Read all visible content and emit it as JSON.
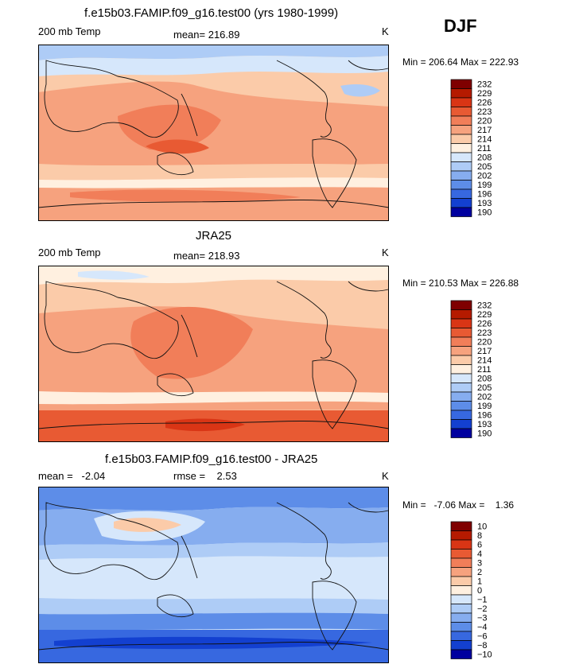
{
  "season": "DJF",
  "chart_data": [
    {
      "type": "heatmap",
      "title": "f.e15b03.FAMIP.f09_g16.test00 (yrs 1980-1999)",
      "left_label": "200 mb Temp",
      "center_label": "mean= 216.89",
      "right_label": "K",
      "minmax_label": "Min = 206.64 Max = 222.93",
      "mean": 216.89,
      "min": 206.64,
      "max": 222.93,
      "units": "K",
      "levels": [
        "232",
        "229",
        "226",
        "223",
        "220",
        "217",
        "214",
        "211",
        "208",
        "205",
        "202",
        "199",
        "196",
        "193",
        "190"
      ],
      "colors": [
        "#7f0000",
        "#b51a00",
        "#d93515",
        "#e85a33",
        "#f17e59",
        "#f6a27e",
        "#fbcba9",
        "#fff0e0",
        "#d6e7fb",
        "#aeccf6",
        "#86adef",
        "#5d8de8",
        "#3768e0",
        "#1340d0",
        "#00009f"
      ],
      "description_levels_per_latitude_band": "warm tropics, cool mid-latitudes"
    },
    {
      "type": "heatmap",
      "title": "JRA25",
      "left_label": "200 mb Temp",
      "center_label": "mean= 218.93",
      "right_label": "K",
      "minmax_label": "Min = 210.53 Max = 226.88",
      "mean": 218.93,
      "min": 210.53,
      "max": 226.88,
      "units": "K",
      "levels": [
        "232",
        "229",
        "226",
        "223",
        "220",
        "217",
        "214",
        "211",
        "208",
        "205",
        "202",
        "199",
        "196",
        "193",
        "190"
      ],
      "colors": [
        "#7f0000",
        "#b51a00",
        "#d93515",
        "#e85a33",
        "#f17e59",
        "#f6a27e",
        "#fbcba9",
        "#fff0e0",
        "#d6e7fb",
        "#aeccf6",
        "#86adef",
        "#5d8de8",
        "#3768e0",
        "#1340d0",
        "#00009f"
      ]
    },
    {
      "type": "heatmap",
      "title": "f.e15b03.FAMIP.f09_g16.test00 - JRA25",
      "left_label": "mean =   -2.04",
      "center_label": "rmse =    2.53",
      "right_label": "K",
      "minmax_label": "Min =   -7.06 Max =    1.36",
      "mean": -2.04,
      "rmse": 2.53,
      "min": -7.06,
      "max": 1.36,
      "units": "K",
      "levels": [
        "10",
        "8",
        "6",
        "4",
        "3",
        "2",
        "1",
        "0",
        "−1",
        "−2",
        "−3",
        "−4",
        "−6",
        "−8",
        "−10"
      ],
      "colors": [
        "#7f0000",
        "#b51a00",
        "#d93515",
        "#e85a33",
        "#f17e59",
        "#f6a27e",
        "#fbcba9",
        "#fff0e0",
        "#d6e7fb",
        "#aeccf6",
        "#86adef",
        "#5d8de8",
        "#3768e0",
        "#1340d0",
        "#00009f"
      ]
    }
  ]
}
